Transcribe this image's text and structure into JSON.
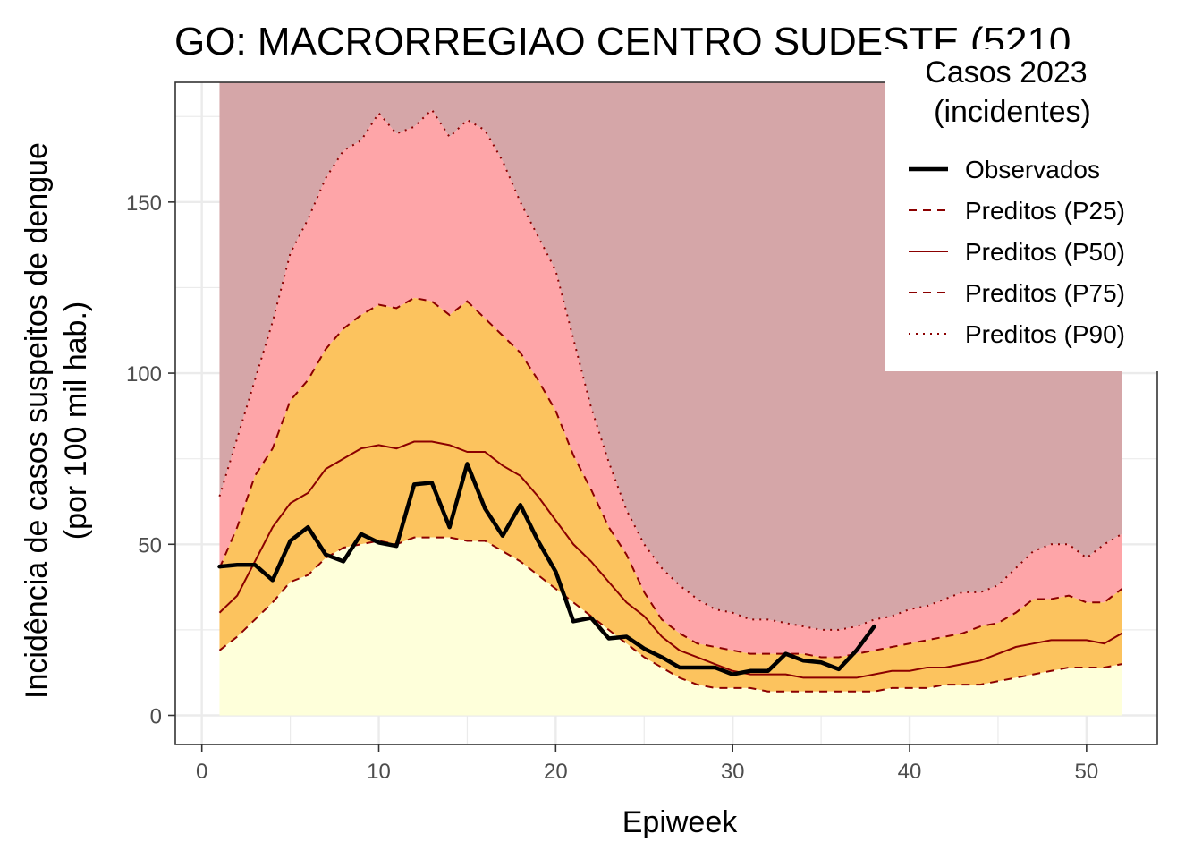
{
  "chart_data": {
    "type": "line",
    "title": "GO: MACRORREGIAO CENTRO SUDESTE (5210",
    "xlabel": "Epiweek",
    "ylabel_line1": "Incidência de casos suspeitos de dengue",
    "ylabel_line2": "(por 100 mil hab.)",
    "xlim": [
      -1.5,
      54
    ],
    "ylim": [
      -8.5,
      185
    ],
    "grid": true,
    "x_ticks": [
      0,
      10,
      20,
      30,
      40,
      50
    ],
    "y_ticks": [
      0,
      50,
      100,
      150
    ],
    "legend": {
      "position": "top-right",
      "title_line1": "Casos 2023",
      "title_line2": "(incidentes)",
      "entries": [
        "Observados",
        "Preditos (P25)",
        "Preditos (P50)",
        "Preditos (P75)",
        "Preditos (P90)"
      ]
    },
    "colors": {
      "band_top": "#d5a6a8",
      "band_p75_p90": "#fea5a8",
      "band_p25_p75": "#fcc35e",
      "band_0_p25": "#feffda",
      "pred_line": "#8b0000",
      "observed": "#000000"
    },
    "band_top_value": 185,
    "weeks": [
      1,
      2,
      3,
      4,
      5,
      6,
      7,
      8,
      9,
      10,
      11,
      12,
      13,
      14,
      15,
      16,
      17,
      18,
      19,
      20,
      21,
      22,
      23,
      24,
      25,
      26,
      27,
      28,
      29,
      30,
      31,
      32,
      33,
      34,
      35,
      36,
      37,
      38,
      39,
      40,
      41,
      42,
      43,
      44,
      45,
      46,
      47,
      48,
      49,
      50,
      51,
      52
    ],
    "series": [
      {
        "name": "Preditos (P25)",
        "values": [
          19,
          23,
          28,
          33,
          39,
          41,
          46,
          49,
          50,
          51,
          50,
          52,
          52,
          52,
          51,
          51,
          48,
          45,
          41,
          37,
          33,
          29,
          25,
          21,
          17,
          14,
          11,
          9,
          8,
          8,
          8,
          7,
          7,
          7,
          7,
          7,
          7,
          7,
          8,
          8,
          8,
          9,
          9,
          9,
          10,
          11,
          12,
          13,
          14,
          14,
          14,
          15
        ]
      },
      {
        "name": "Preditos (P50)",
        "values": [
          30,
          35,
          45,
          55,
          62,
          65,
          72,
          75,
          78,
          79,
          78,
          80,
          80,
          79,
          77,
          77,
          73,
          70,
          64,
          57,
          50,
          45,
          39,
          33,
          29,
          23,
          19,
          17,
          15,
          13,
          12,
          12,
          12,
          11,
          11,
          11,
          11,
          12,
          13,
          13,
          14,
          14,
          15,
          16,
          18,
          20,
          21,
          22,
          22,
          22,
          21,
          24
        ]
      },
      {
        "name": "Preditos (P75)",
        "values": [
          43,
          55,
          70,
          78,
          92,
          98,
          107,
          113,
          117,
          120,
          119,
          122,
          121,
          117,
          121,
          116,
          111,
          106,
          98,
          89,
          76,
          66,
          55,
          47,
          36,
          28,
          24,
          21,
          20,
          19,
          18,
          18,
          18,
          18,
          17,
          17,
          18,
          19,
          20,
          21,
          22,
          23,
          24,
          26,
          27,
          30,
          34,
          34,
          35,
          33,
          33,
          37
        ]
      },
      {
        "name": "Preditos (P90)",
        "values": [
          64,
          81,
          98,
          115,
          135,
          145,
          157,
          165,
          168,
          176,
          170,
          172,
          177,
          169,
          174,
          171,
          162,
          150,
          140,
          130,
          110,
          90,
          74,
          60,
          50,
          43,
          38,
          34,
          31,
          30,
          28,
          28,
          27,
          26,
          25,
          25,
          26,
          28,
          29,
          31,
          32,
          34,
          36,
          36,
          38,
          43,
          48,
          50,
          50,
          46,
          50,
          53
        ]
      },
      {
        "name": "Observados",
        "weeks": [
          1,
          2,
          3,
          4,
          5,
          6,
          7,
          8,
          9,
          10,
          11,
          12,
          13,
          14,
          15,
          16,
          17,
          18,
          19,
          20,
          21,
          22,
          23,
          24,
          25,
          26,
          27,
          28,
          29,
          30,
          31,
          32,
          33,
          34,
          35,
          36,
          37,
          38
        ],
        "values": [
          43.5,
          44,
          44,
          39.5,
          51,
          55,
          47,
          45,
          53,
          50.5,
          49.5,
          67.5,
          68,
          55,
          73.5,
          60.5,
          52.5,
          61.5,
          51,
          42,
          27.5,
          28.5,
          22.5,
          23,
          19.5,
          17,
          14,
          14,
          14,
          12,
          13,
          13,
          18,
          16,
          15.5,
          13.5,
          19,
          26
        ]
      }
    ]
  }
}
